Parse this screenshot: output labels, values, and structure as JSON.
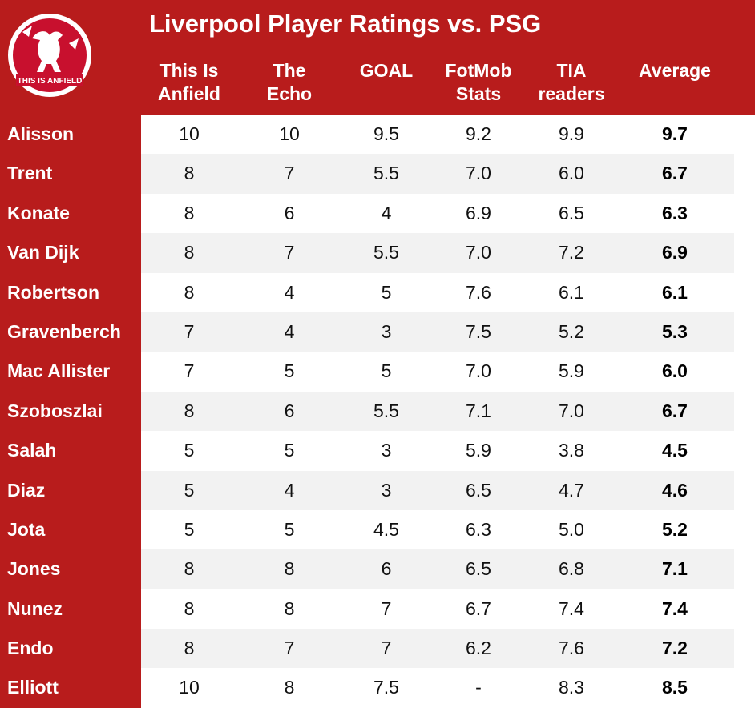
{
  "colors": {
    "brand_red": "#b81c1c",
    "alt_row": "#f2f2f2",
    "text": "#111111",
    "white": "#ffffff"
  },
  "logo": {
    "text": "THIS IS ANFIELD",
    "icon": "liverbird-icon"
  },
  "chart_data": {
    "type": "table",
    "title": "Liverpool Player Ratings vs. PSG",
    "columns": [
      [
        "This Is",
        "Anfield"
      ],
      [
        "The",
        "Echo"
      ],
      [
        "GOAL"
      ],
      [
        "FotMob",
        "Stats"
      ],
      [
        "TIA",
        "readers"
      ],
      [
        "Average"
      ]
    ],
    "rows": [
      {
        "player": "Alisson",
        "values": [
          "10",
          "10",
          "9.5",
          "9.2",
          "9.9",
          "9.7"
        ]
      },
      {
        "player": "Trent",
        "values": [
          "8",
          "7",
          "5.5",
          "7.0",
          "6.0",
          "6.7"
        ]
      },
      {
        "player": "Konate",
        "values": [
          "8",
          "6",
          "4",
          "6.9",
          "6.5",
          "6.3"
        ]
      },
      {
        "player": "Van Dijk",
        "values": [
          "8",
          "7",
          "5.5",
          "7.0",
          "7.2",
          "6.9"
        ]
      },
      {
        "player": "Robertson",
        "values": [
          "8",
          "4",
          "5",
          "7.6",
          "6.1",
          "6.1"
        ]
      },
      {
        "player": "Gravenberch",
        "values": [
          "7",
          "4",
          "3",
          "7.5",
          "5.2",
          "5.3"
        ]
      },
      {
        "player": "Mac Allister",
        "values": [
          "7",
          "5",
          "5",
          "7.0",
          "5.9",
          "6.0"
        ]
      },
      {
        "player": "Szoboszlai",
        "values": [
          "8",
          "6",
          "5.5",
          "7.1",
          "7.0",
          "6.7"
        ]
      },
      {
        "player": "Salah",
        "values": [
          "5",
          "5",
          "3",
          "5.9",
          "3.8",
          "4.5"
        ]
      },
      {
        "player": "Diaz",
        "values": [
          "5",
          "4",
          "3",
          "6.5",
          "4.7",
          "4.6"
        ]
      },
      {
        "player": "Jota",
        "values": [
          "5",
          "5",
          "4.5",
          "6.3",
          "5.0",
          "5.2"
        ]
      },
      {
        "player": "Jones",
        "values": [
          "8",
          "8",
          "6",
          "6.5",
          "6.8",
          "7.1"
        ]
      },
      {
        "player": "Nunez",
        "values": [
          "8",
          "8",
          "7",
          "6.7",
          "7.4",
          "7.4"
        ]
      },
      {
        "player": "Endo",
        "values": [
          "8",
          "7",
          "7",
          "6.2",
          "7.6",
          "7.2"
        ]
      },
      {
        "player": "Elliott",
        "values": [
          "10",
          "8",
          "7.5",
          "-",
          "8.3",
          "8.5"
        ]
      }
    ]
  }
}
